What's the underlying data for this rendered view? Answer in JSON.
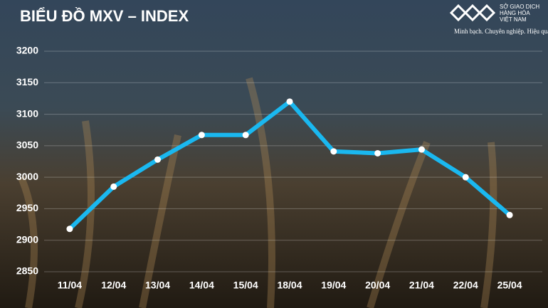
{
  "chart_data": {
    "type": "line",
    "title": "BIỂU ĐỒ MXV – INDEX",
    "categories": [
      "11/04",
      "12/04",
      "13/04",
      "14/04",
      "15/04",
      "18/04",
      "19/04",
      "20/04",
      "21/04",
      "22/04",
      "25/04"
    ],
    "values": [
      2918,
      2985,
      3028,
      3067,
      3067,
      3120,
      3041,
      3038,
      3044,
      3000,
      2940
    ],
    "color": "#1ab8f0",
    "ylim": [
      2850,
      3200
    ],
    "yticks": [
      2850,
      2900,
      2950,
      3000,
      3050,
      3100,
      3150,
      3200
    ],
    "grid": true
  },
  "brand": {
    "name_lines": [
      "SỞ GIAO DỊCH",
      "HÀNG HÓA",
      "VIỆT NAM"
    ],
    "slogan": "Minh bạch. Chuyên nghiệp. Hiệu quả"
  }
}
